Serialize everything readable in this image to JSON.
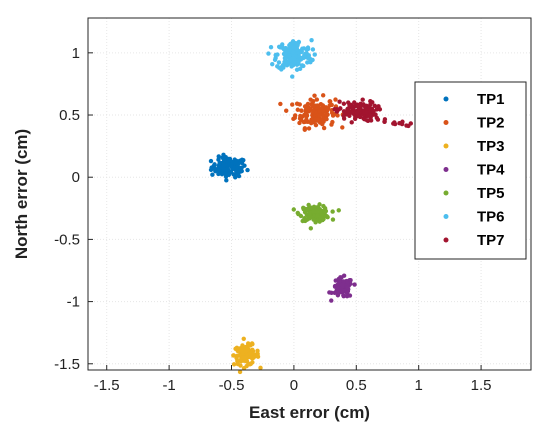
{
  "chart_data": {
    "type": "scatter",
    "title": "",
    "xlabel": "East error (cm)",
    "ylabel": "North error (cm)",
    "xlim": [
      -1.65,
      1.9
    ],
    "ylim": [
      -1.55,
      1.28
    ],
    "xticks": [
      -1.5,
      -1,
      -0.5,
      0,
      0.5,
      1,
      1.5
    ],
    "xtick_labels": [
      "-1.5",
      "-1",
      "-0.5",
      "0",
      "0.5",
      "1",
      "1.5"
    ],
    "yticks": [
      -1.5,
      -1,
      -0.5,
      0,
      0.5,
      1
    ],
    "ytick_labels": [
      "-1.5",
      "-1",
      "-0.5",
      "0",
      "0.5",
      "1"
    ],
    "grid": true,
    "legend_position": "right",
    "series": [
      {
        "name": "TP1",
        "color": "#0072BD",
        "center": [
          -0.52,
          0.08
        ],
        "spread": [
          0.07,
          0.04
        ],
        "count": 110
      },
      {
        "name": "TP2",
        "color": "#D95319",
        "center": [
          0.17,
          0.52
        ],
        "spread": [
          0.08,
          0.06
        ],
        "count": 150
      },
      {
        "name": "TP3",
        "color": "#EDB120",
        "center": [
          -0.38,
          -1.43
        ],
        "spread": [
          0.05,
          0.04
        ],
        "count": 110
      },
      {
        "name": "TP4",
        "color": "#7E2F8E",
        "center": [
          0.39,
          -0.89
        ],
        "spread": [
          0.04,
          0.04
        ],
        "count": 90
      },
      {
        "name": "TP5",
        "color": "#77AC30",
        "center": [
          0.17,
          -0.29
        ],
        "spread": [
          0.06,
          0.03
        ],
        "count": 110
      },
      {
        "name": "TP6",
        "color": "#4DBEEE",
        "center": [
          0.0,
          0.98
        ],
        "spread": [
          0.07,
          0.06
        ],
        "count": 160
      },
      {
        "name": "TP7",
        "color": "#A2142F",
        "center": [
          0.5,
          0.53
        ],
        "spread": [
          0.08,
          0.04
        ],
        "count": 110,
        "tail": [
          [
            0.65,
            0.48
          ],
          [
            0.72,
            0.45
          ],
          [
            0.8,
            0.44
          ],
          [
            0.86,
            0.43
          ],
          [
            0.92,
            0.4
          ]
        ]
      }
    ]
  }
}
